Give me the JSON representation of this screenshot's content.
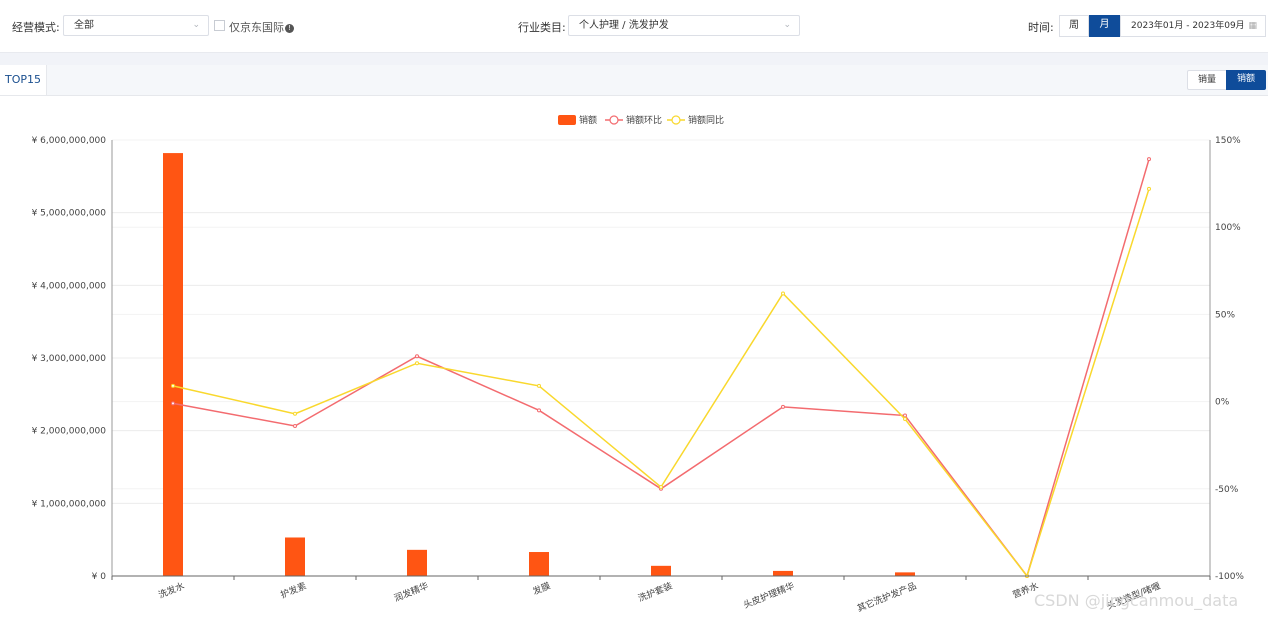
{
  "filters": {
    "mode_label": "经营模式:",
    "mode_value": "全部",
    "jd_intl_label": "仅京东国际",
    "category_label": "行业类目:",
    "category_value": "个人护理 / 洗发护发",
    "time_label": "时间:",
    "period_week": "周",
    "period_month": "月",
    "active_period": "月",
    "date_range": "2023年01月 - 2023年09月"
  },
  "tabs": [
    {
      "label": "TOP15",
      "active": true
    }
  ],
  "metric_toggle": {
    "quantity": "销量",
    "amount": "销额",
    "active": "销额"
  },
  "colors": {
    "accent": "#0f4c9a",
    "bar": "#ff5513",
    "mom_line": "#f36b6f",
    "yoy_line": "#f9d82d"
  },
  "watermark": "CSDN @jingcanmou_data",
  "chart_data": {
    "type": "bar",
    "legend": [
      "销额",
      "销额环比",
      "销额同比"
    ],
    "legend_position": "top-center",
    "categories": [
      "洗发水",
      "护发素",
      "润发精华",
      "发膜",
      "洗护套装",
      "头皮护理精华",
      "其它洗护发产品",
      "营养水",
      "头发造型/啫喱"
    ],
    "series": [
      {
        "name": "销额",
        "type": "bar",
        "axis": "left",
        "values": [
          5820000000,
          530000000,
          360000000,
          330000000,
          140000000,
          70000000,
          50000000,
          2000000,
          1000000
        ]
      },
      {
        "name": "销额环比",
        "type": "line",
        "axis": "right",
        "values": [
          -1,
          -14,
          26,
          -5,
          -50,
          -3,
          -8,
          -100,
          139
        ]
      },
      {
        "name": "销额同比",
        "type": "line",
        "axis": "right",
        "values": [
          9,
          -7,
          22,
          9,
          -49,
          62,
          -10,
          -100,
          122
        ]
      }
    ],
    "y_left": {
      "min": 0,
      "max": 6000000000,
      "ticks": [
        "¥ 0",
        "¥ 1,000,000,000",
        "¥ 2,000,000,000",
        "¥ 3,000,000,000",
        "¥ 4,000,000,000",
        "¥ 5,000,000,000",
        "¥ 6,000,000,000"
      ]
    },
    "y_right": {
      "min": -100,
      "max": 150,
      "ticks": [
        "-100%",
        "-50%",
        "0%",
        "50%",
        "100%",
        "150%"
      ]
    },
    "grid": true
  }
}
